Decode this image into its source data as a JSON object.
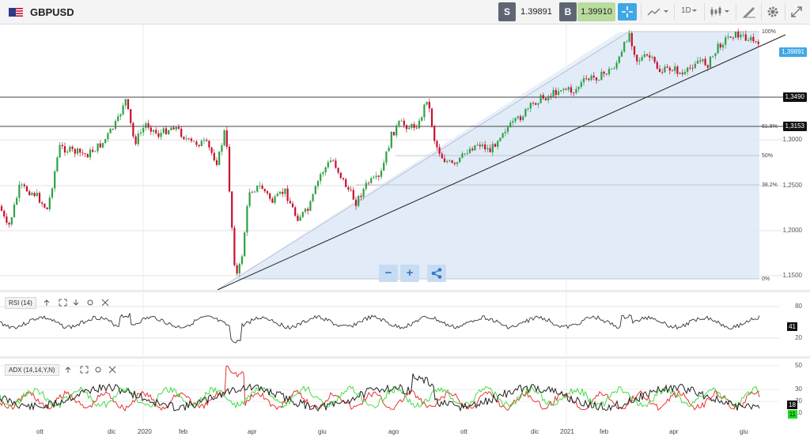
{
  "toolbar": {
    "symbol": "GBPUSD",
    "sell_label": "S",
    "sell_price": "1.39891",
    "buy_label": "B",
    "buy_price": "1.39910",
    "timeframe": "1D",
    "icons": [
      "flag-icon",
      "crosshair-icon",
      "line-chart-type-icon",
      "timeframe-dropdown",
      "candlestick-icon",
      "draw-tools-icon",
      "settings-gear-icon",
      "fullscreen-expand-icon"
    ]
  },
  "main_chart": {
    "price_axis": [
      "1,3000",
      "1,2500",
      "1,2000",
      "1,1500"
    ],
    "current_price": "1,39891",
    "horizontal_levels": [
      "1,3490",
      "1,3153"
    ],
    "fib_labels": [
      "100%",
      "61.8%",
      "50%",
      "38.2%",
      "0%"
    ]
  },
  "rsi": {
    "label": "RSI (14)",
    "axis": [
      "80",
      "20"
    ],
    "value": "41"
  },
  "adx": {
    "label": "ADX (14,14,Y,N)",
    "axis": [
      "50",
      "30",
      "20",
      "10"
    ],
    "value_adx": "18",
    "value_di": "11"
  },
  "time_axis": [
    "ott",
    "dic",
    "2020",
    "feb",
    "apr",
    "giu",
    "ago",
    "ott",
    "dic",
    "2021",
    "feb",
    "apr",
    "giu"
  ],
  "colors": {
    "up": "#2ea043",
    "down": "#c8102e",
    "accent": "#3fa7e6",
    "buy_bg": "#b9dc9e",
    "fib_fill": "#d9e6f7"
  }
}
